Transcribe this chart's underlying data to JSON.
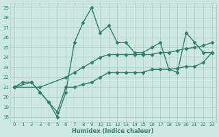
{
  "xlabel": "Humidex (Indice chaleur)",
  "ylabel": "",
  "bg_color": "#cde8e2",
  "line_color": "#2e7d6e",
  "xlim": [
    -0.5,
    23.5
  ],
  "ylim": [
    17.5,
    29.5
  ],
  "xticks": [
    0,
    1,
    2,
    3,
    4,
    5,
    6,
    7,
    8,
    9,
    10,
    11,
    12,
    13,
    14,
    15,
    16,
    17,
    18,
    19,
    20,
    21,
    22,
    23
  ],
  "yticks": [
    18,
    19,
    20,
    21,
    22,
    23,
    24,
    25,
    26,
    27,
    28,
    29
  ],
  "lines": [
    {
      "x": [
        0,
        1,
        2,
        3,
        4,
        5,
        6,
        7,
        8,
        9,
        10,
        11,
        12,
        13,
        14,
        15,
        16,
        17,
        18,
        19,
        20,
        21,
        22,
        23
      ],
      "y": [
        21,
        21.5,
        21.5,
        20.5,
        19.5,
        18,
        20.5,
        25.5,
        27.5,
        29,
        26.5,
        27.2,
        25.5,
        25.5,
        24.5,
        24.5,
        25,
        25.5,
        22.8,
        22.5,
        26.5,
        25.5,
        24.5,
        24.5
      ]
    },
    {
      "x": [
        0,
        2,
        3,
        4,
        5,
        6,
        7,
        8,
        9,
        10,
        11,
        12,
        13,
        14,
        15,
        16,
        17,
        18,
        19,
        20,
        21,
        22,
        23
      ],
      "y": [
        21,
        21.5,
        20.5,
        19.5,
        18.5,
        21,
        21,
        21.3,
        21.5,
        22,
        22.5,
        22.5,
        22.5,
        22.5,
        22.5,
        22.8,
        22.8,
        22.8,
        22.9,
        23.1,
        23.1,
        23.5,
        24.5
      ]
    },
    {
      "x": [
        0,
        3,
        6,
        7,
        8,
        9,
        10,
        11,
        12,
        13,
        14,
        15,
        16,
        17,
        18,
        19,
        20,
        21,
        22,
        23
      ],
      "y": [
        21,
        21,
        22,
        22.5,
        23,
        23.5,
        24,
        24.3,
        24.3,
        24.3,
        24.3,
        24.3,
        24.3,
        24.5,
        24.5,
        24.7,
        24.9,
        25,
        25.2,
        25.5
      ]
    }
  ],
  "marker": "D",
  "markersize": 2.5,
  "linewidth": 1.0,
  "grid_color": "#a8cdc6",
  "font_color": "#2e7d6e",
  "axis_fontsize": 5.5,
  "tick_fontsize": 5.0,
  "xlabel_fontsize": 6,
  "xlabel_fontweight": "bold"
}
